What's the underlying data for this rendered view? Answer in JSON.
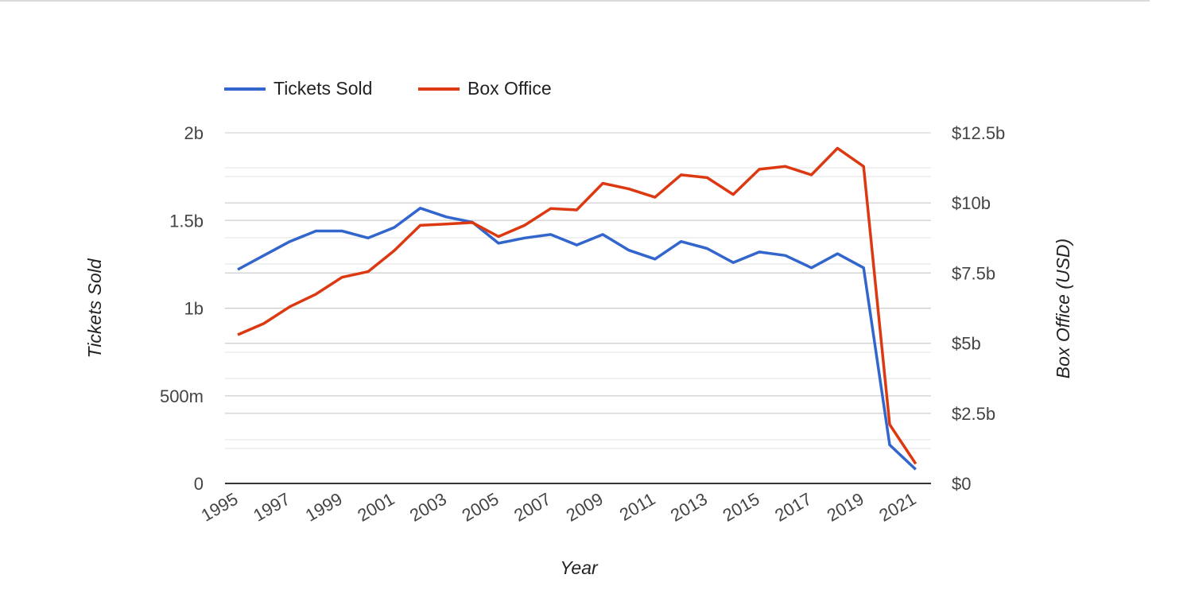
{
  "chart_data": {
    "type": "line",
    "title": "",
    "xlabel": "Year",
    "ylabel_left": "Tickets Sold",
    "ylabel_right": "Box Office (USD)",
    "x": [
      1995,
      1996,
      1997,
      1998,
      1999,
      2000,
      2001,
      2002,
      2003,
      2004,
      2005,
      2006,
      2007,
      2008,
      2009,
      2010,
      2011,
      2012,
      2013,
      2014,
      2015,
      2016,
      2017,
      2018,
      2019,
      2020,
      2021
    ],
    "x_tick_labels": [
      "1995",
      "1997",
      "1999",
      "2001",
      "2003",
      "2005",
      "2007",
      "2009",
      "2011",
      "2013",
      "2015",
      "2017",
      "2019",
      "2021"
    ],
    "y_left_ticks": [
      "0",
      "500m",
      "1b",
      "1.5b",
      "2b"
    ],
    "y_left_lim": [
      0,
      2000000000
    ],
    "y_right_ticks": [
      "$0",
      "$2.5b",
      "$5b",
      "$7.5b",
      "$10b",
      "$12.5b"
    ],
    "y_right_lim": [
      0,
      12500000000
    ],
    "legend_position": "top-left",
    "grid": true,
    "series": [
      {
        "name": "Tickets Sold",
        "axis": "left",
        "color": "#3366cc",
        "values": [
          1220000000,
          1300000000,
          1380000000,
          1440000000,
          1440000000,
          1400000000,
          1460000000,
          1570000000,
          1520000000,
          1490000000,
          1370000000,
          1400000000,
          1420000000,
          1360000000,
          1420000000,
          1330000000,
          1280000000,
          1380000000,
          1340000000,
          1260000000,
          1320000000,
          1300000000,
          1230000000,
          1310000000,
          1230000000,
          220000000,
          80000000
        ]
      },
      {
        "name": "Box Office",
        "axis": "right",
        "color": "#dc3912",
        "values": [
          5300000000,
          5700000000,
          6300000000,
          6750000000,
          7350000000,
          7550000000,
          8300000000,
          9200000000,
          9250000000,
          9300000000,
          8800000000,
          9200000000,
          9800000000,
          9750000000,
          10700000000,
          10500000000,
          10200000000,
          11000000000,
          10900000000,
          10300000000,
          11200000000,
          11300000000,
          11000000000,
          11950000000,
          11300000000,
          2100000000,
          700000000
        ]
      }
    ]
  }
}
